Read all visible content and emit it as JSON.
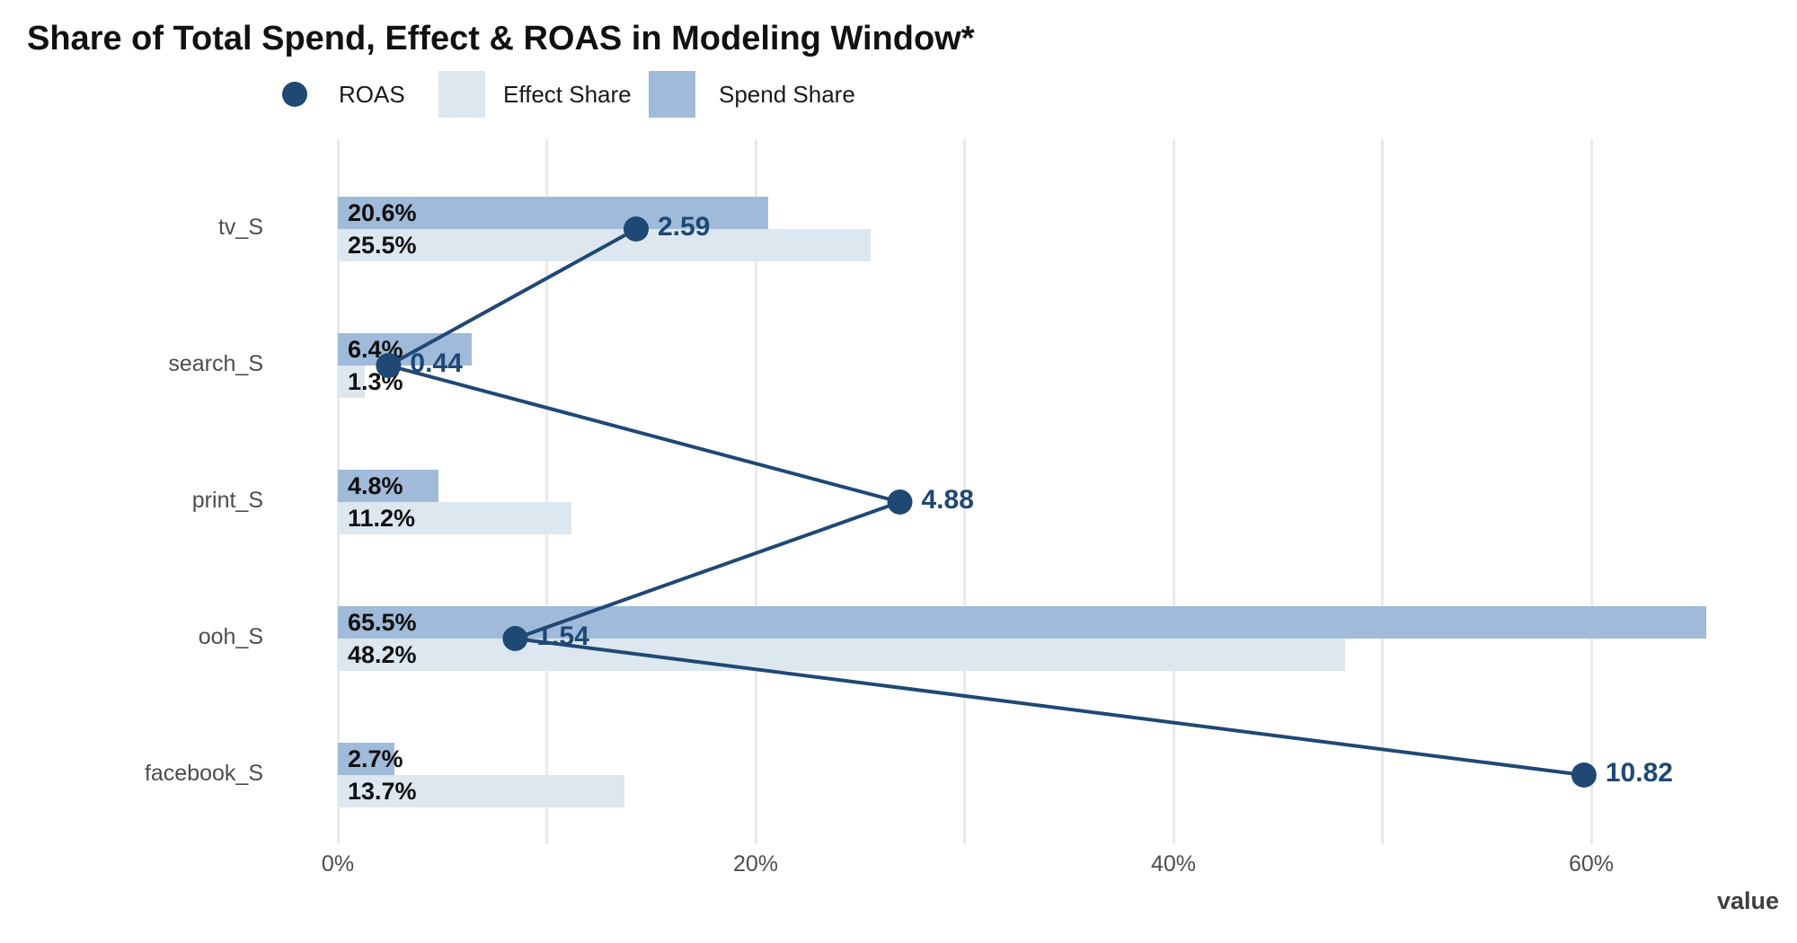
{
  "chart_data": {
    "type": "bar",
    "title": "Share of Total Spend, Effect & ROAS in Modeling Window*",
    "xlabel": "value",
    "ylabel": "",
    "categories": [
      "tv_S",
      "search_S",
      "print_S",
      "ooh_S",
      "facebook_S"
    ],
    "series": [
      {
        "name": "ROAS",
        "values": [
          2.59,
          0.44,
          4.88,
          1.54,
          10.82
        ]
      },
      {
        "name": "Effect Share",
        "unit": "%",
        "values": [
          25.5,
          1.3,
          11.2,
          48.2,
          13.7
        ]
      },
      {
        "name": "Spend Share",
        "unit": "%",
        "values": [
          20.6,
          6.4,
          4.8,
          65.5,
          2.7
        ]
      }
    ],
    "data_labels": {
      "spend_share": [
        "20.6%",
        "6.4%",
        "4.8%",
        "65.5%",
        "2.7%"
      ],
      "effect_share": [
        "25.5%",
        "1.3%",
        "11.2%",
        "48.2%",
        "13.7%"
      ],
      "roas": [
        "2.59",
        "0.44",
        "4.88",
        "1.54",
        "10.82"
      ]
    },
    "x_ticks": {
      "labels": [
        "0%",
        "20%",
        "40%",
        "60%"
      ],
      "values": [
        0,
        20,
        40,
        60
      ]
    },
    "gridlines_pct": [
      0,
      10,
      20,
      30,
      40,
      50,
      60
    ],
    "axis": {
      "xlim": [
        0,
        68
      ],
      "grid": "vertical-only",
      "legend_position": "top"
    },
    "legend": {
      "items": [
        {
          "label": "ROAS",
          "marker": "circle"
        },
        {
          "label": "Effect Share",
          "marker": "square"
        },
        {
          "label": "Spend Share",
          "marker": "square"
        }
      ]
    },
    "colors": {
      "roas": "#1F4875",
      "effect_share": "#DCE7F0",
      "spend_share": "#9FBBD9",
      "grid": "#EAEAEA",
      "axis_text": "#4d4d4d",
      "bar_label": "#0f0f0f",
      "title": "#111111",
      "axis_title": "#3f3f3f"
    }
  }
}
